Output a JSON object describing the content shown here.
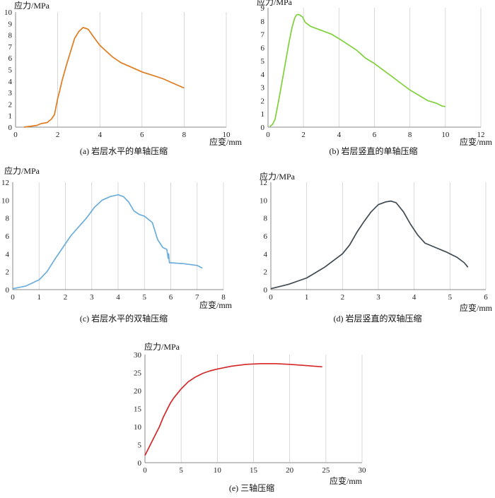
{
  "chart_data": [
    {
      "type": "line",
      "caption": "(a) 岩层水平的单轴压缩",
      "ylabel": "应力/MPa",
      "xlabel": "应变/mm",
      "xlim": [
        0,
        10
      ],
      "ylim": [
        0,
        10
      ],
      "xticks": [
        0,
        2,
        4,
        6,
        8,
        10
      ],
      "yticks": [
        0,
        1,
        2,
        3,
        4,
        5,
        6,
        7,
        8,
        9,
        10
      ],
      "grid": "vertical",
      "color": "#E07B1F",
      "x": [
        0.4,
        0.8,
        1.0,
        1.2,
        1.5,
        1.7,
        1.85,
        2.0,
        2.1,
        2.2,
        2.4,
        2.6,
        2.8,
        3.0,
        3.2,
        3.3,
        3.45,
        3.6,
        3.8,
        4.0,
        4.3,
        4.6,
        5.0,
        5.5,
        6.0,
        6.5,
        7.0,
        7.5,
        8.0
      ],
      "y": [
        0.0,
        0.1,
        0.15,
        0.3,
        0.4,
        0.7,
        1.1,
        2.5,
        3.2,
        4.0,
        5.3,
        6.5,
        7.7,
        8.3,
        8.65,
        8.6,
        8.5,
        8.1,
        7.6,
        7.1,
        6.6,
        6.1,
        5.6,
        5.2,
        4.8,
        4.5,
        4.2,
        3.8,
        3.4
      ]
    },
    {
      "type": "line",
      "caption": "(b) 岩层竖直的单轴压缩",
      "ylabel": "应力/MPa",
      "xlabel": "应变/mm",
      "xlim": [
        0,
        12
      ],
      "ylim": [
        0,
        9
      ],
      "xticks": [
        0,
        2,
        4,
        6,
        8,
        10,
        12
      ],
      "yticks": [
        0,
        1,
        2,
        3,
        4,
        5,
        6,
        7,
        8,
        9
      ],
      "grid": "vertical",
      "color": "#7FD13B",
      "x": [
        0.1,
        0.25,
        0.4,
        0.6,
        0.8,
        1.0,
        1.2,
        1.35,
        1.5,
        1.6,
        1.7,
        1.8,
        1.95,
        2.1,
        2.4,
        3.0,
        3.6,
        4.2,
        5.0,
        5.5,
        6.0,
        6.5,
        7.0,
        7.5,
        8.0,
        8.5,
        9.0,
        9.5,
        9.8,
        10.0
      ],
      "y": [
        0.05,
        0.2,
        0.6,
        2.0,
        3.5,
        5.0,
        6.5,
        7.5,
        8.2,
        8.45,
        8.5,
        8.45,
        8.3,
        7.9,
        7.6,
        7.3,
        7.0,
        6.5,
        5.8,
        5.2,
        4.8,
        4.3,
        3.8,
        3.3,
        2.8,
        2.4,
        2.0,
        1.8,
        1.6,
        1.55
      ]
    },
    {
      "type": "line",
      "caption": "(c) 岩层水平的双轴压缩",
      "ylabel": "应力/MPa",
      "xlabel": "应变/mm",
      "xlim": [
        0,
        8
      ],
      "ylim": [
        0,
        12
      ],
      "xticks": [
        0,
        1,
        2,
        3,
        4,
        5,
        6,
        7,
        8
      ],
      "yticks": [
        0,
        2,
        4,
        6,
        8,
        10,
        12
      ],
      "grid": "vertical",
      "color": "#6BAEDB",
      "x": [
        0.0,
        0.5,
        1.0,
        1.3,
        1.6,
        1.9,
        2.2,
        2.5,
        2.8,
        3.1,
        3.4,
        3.7,
        4.0,
        4.2,
        4.4,
        4.6,
        4.8,
        5.0,
        5.3,
        5.5,
        5.7,
        5.85,
        5.9,
        5.92,
        5.95,
        6.0,
        6.5,
        7.0,
        7.2
      ],
      "y": [
        0.1,
        0.4,
        1.1,
        2.0,
        3.4,
        4.7,
        6.0,
        7.0,
        8.0,
        9.2,
        10.0,
        10.4,
        10.6,
        10.4,
        9.8,
        8.8,
        8.4,
        8.2,
        7.5,
        5.6,
        4.7,
        4.5,
        3.5,
        4.0,
        3.0,
        3.0,
        2.9,
        2.7,
        2.4
      ]
    },
    {
      "type": "line",
      "caption": "(d) 岩层竖直的双轴压缩",
      "ylabel": "应力/MPa",
      "xlabel": "应变/mm",
      "xlim": [
        0,
        6
      ],
      "ylim": [
        0,
        12
      ],
      "xticks": [
        0,
        1,
        2,
        3,
        4,
        5,
        6
      ],
      "yticks": [
        0,
        2,
        4,
        6,
        8,
        10,
        12
      ],
      "grid": "vertical",
      "color": "#3F4A52",
      "x": [
        0.0,
        0.5,
        1.0,
        1.5,
        2.0,
        2.2,
        2.4,
        2.6,
        2.8,
        3.0,
        3.2,
        3.35,
        3.5,
        3.7,
        3.9,
        4.1,
        4.3,
        4.6,
        4.9,
        5.2,
        5.4,
        5.5
      ],
      "y": [
        0.1,
        0.6,
        1.3,
        2.5,
        4.0,
        5.0,
        6.4,
        7.6,
        8.7,
        9.5,
        9.8,
        9.9,
        9.7,
        8.7,
        7.3,
        6.1,
        5.2,
        4.7,
        4.2,
        3.6,
        3.0,
        2.5
      ]
    },
    {
      "type": "line",
      "caption": "(e) 三轴压缩",
      "ylabel": "应力/MPa",
      "xlabel": "应变/mm",
      "xlim": [
        0,
        30
      ],
      "ylim": [
        0,
        30
      ],
      "xticks": [
        0,
        5,
        10,
        15,
        20,
        25,
        30
      ],
      "yticks": [
        0,
        5,
        10,
        15,
        20,
        25,
        30
      ],
      "grid": "vertical",
      "color": "#D62728",
      "x": [
        0.0,
        0.5,
        1.0,
        1.5,
        2.0,
        2.5,
        3.0,
        3.5,
        4.0,
        5.0,
        6.0,
        7.0,
        8.0,
        9.0,
        10.0,
        12.0,
        14.0,
        16.0,
        18.0,
        20.0,
        22.0,
        24.5
      ],
      "y": [
        2.0,
        4.0,
        6.0,
        8.0,
        10.0,
        12.5,
        14.5,
        16.5,
        18.0,
        20.5,
        22.5,
        23.8,
        24.8,
        25.5,
        26.0,
        26.8,
        27.3,
        27.5,
        27.5,
        27.3,
        27.0,
        26.6
      ]
    }
  ]
}
